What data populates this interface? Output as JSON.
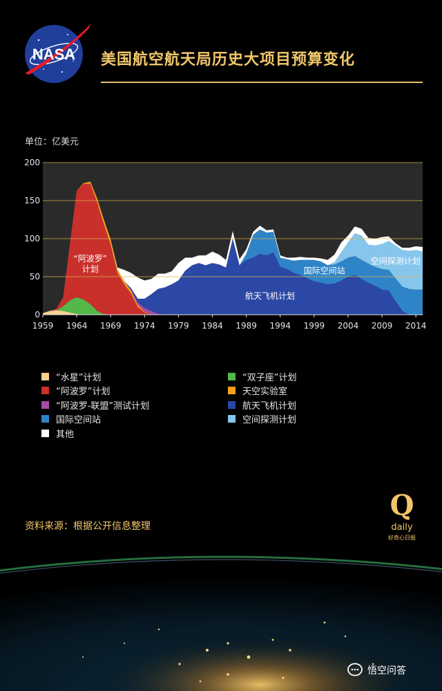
{
  "header": {
    "logo_text": "NASA",
    "title": "美国航空航天局历史大项目预算变化"
  },
  "unit_label": "单位：亿美元",
  "chart_data": {
    "type": "area",
    "stacked": true,
    "xlim": [
      1959,
      2015
    ],
    "ylim": [
      0,
      200
    ],
    "y_ticks": [
      0,
      50,
      100,
      150,
      200
    ],
    "x_ticks": [
      1959,
      1964,
      1969,
      1974,
      1979,
      1984,
      1989,
      1994,
      1999,
      2004,
      2009,
      2014
    ],
    "grid": "horizontal",
    "legend_position": "bottom",
    "annotations": [
      {
        "text": "“阿波罗”计划",
        "series": "“阿波罗”计划"
      },
      {
        "text": "航天飞机计划",
        "series": "航天飞机计划"
      },
      {
        "text": "国际空间站",
        "series": "国际空间站"
      },
      {
        "text": "空间探测计划",
        "series": "空间探测计划"
      }
    ],
    "x": [
      1959,
      1960,
      1961,
      1962,
      1963,
      1964,
      1965,
      1966,
      1967,
      1968,
      1969,
      1970,
      1971,
      1972,
      1973,
      1974,
      1975,
      1976,
      1977,
      1978,
      1979,
      1980,
      1981,
      1982,
      1983,
      1984,
      1985,
      1986,
      1987,
      1988,
      1989,
      1990,
      1991,
      1992,
      1993,
      1994,
      1995,
      1996,
      1997,
      1998,
      1999,
      2000,
      2001,
      2002,
      2003,
      2004,
      2005,
      2006,
      2007,
      2008,
      2009,
      2010,
      2011,
      2012,
      2013,
      2014,
      2015
    ],
    "series": [
      {
        "name": "“水星”计划",
        "color": "#f5d28e",
        "values": [
          2,
          5,
          6,
          5,
          3,
          1,
          0,
          0,
          0,
          0,
          0,
          0,
          0,
          0,
          0,
          0,
          0,
          0,
          0,
          0,
          0,
          0,
          0,
          0,
          0,
          0,
          0,
          0,
          0,
          0,
          0,
          0,
          0,
          0,
          0,
          0,
          0,
          0,
          0,
          0,
          0,
          0,
          0,
          0,
          0,
          0,
          0,
          0,
          0,
          0,
          0,
          0,
          0,
          0,
          0,
          0,
          0
        ]
      },
      {
        "name": "“双子座”计划",
        "color": "#54b848",
        "values": [
          0,
          0,
          0,
          6,
          16,
          22,
          20,
          14,
          5,
          1,
          0,
          0,
          0,
          0,
          0,
          0,
          0,
          0,
          0,
          0,
          0,
          0,
          0,
          0,
          0,
          0,
          0,
          0,
          0,
          0,
          0,
          0,
          0,
          0,
          0,
          0,
          0,
          0,
          0,
          0,
          0,
          0,
          0,
          0,
          0,
          0,
          0,
          0,
          0,
          0,
          0,
          0,
          0,
          0,
          0,
          0,
          0
        ]
      },
      {
        "name": "“阿波罗”计划",
        "color": "#c9302c",
        "values": [
          0,
          0,
          2,
          12,
          75,
          140,
          152,
          158,
          143,
          118,
          92,
          55,
          40,
          28,
          10,
          3,
          0,
          0,
          0,
          0,
          0,
          0,
          0,
          0,
          0,
          0,
          0,
          0,
          0,
          0,
          0,
          0,
          0,
          0,
          0,
          0,
          0,
          0,
          0,
          0,
          0,
          0,
          0,
          0,
          0,
          0,
          0,
          0,
          0,
          0,
          0,
          0,
          0,
          0,
          0,
          0,
          0
        ]
      },
      {
        "name": "天空实验室",
        "color": "#f5a01a",
        "values": [
          0,
          0,
          0,
          0,
          0,
          0,
          1,
          3,
          5,
          6,
          7,
          5,
          4,
          4,
          3,
          1,
          0,
          0,
          0,
          0,
          0,
          0,
          0,
          0,
          0,
          0,
          0,
          0,
          0,
          0,
          0,
          0,
          0,
          0,
          0,
          0,
          0,
          0,
          0,
          0,
          0,
          0,
          0,
          0,
          0,
          0,
          0,
          0,
          0,
          0,
          0,
          0,
          0,
          0,
          0,
          0,
          0
        ]
      },
      {
        "name": "“阿波罗-联盟”测试计划",
        "color": "#a64ca6",
        "values": [
          0,
          0,
          0,
          0,
          0,
          0,
          0,
          0,
          0,
          0,
          0,
          0,
          0,
          1,
          3,
          5,
          5,
          1,
          0,
          0,
          0,
          0,
          0,
          0,
          0,
          0,
          0,
          0,
          0,
          0,
          0,
          0,
          0,
          0,
          0,
          0,
          0,
          0,
          0,
          0,
          0,
          0,
          0,
          0,
          0,
          0,
          0,
          0,
          0,
          0,
          0,
          0,
          0,
          0,
          0,
          0,
          0
        ]
      },
      {
        "name": "航天飞机计划",
        "color": "#2b48a6",
        "values": [
          0,
          0,
          0,
          0,
          0,
          0,
          0,
          0,
          0,
          0,
          0,
          0,
          0,
          2,
          5,
          12,
          22,
          33,
          36,
          40,
          45,
          58,
          65,
          68,
          65,
          68,
          66,
          62,
          100,
          65,
          72,
          75,
          80,
          78,
          82,
          63,
          60,
          55,
          52,
          48,
          44,
          42,
          40,
          41,
          45,
          50,
          52,
          47,
          42,
          38,
          33,
          32,
          18,
          5,
          0,
          0,
          0
        ]
      },
      {
        "name": "国际空间站",
        "color": "#2f84c8",
        "values": [
          0,
          0,
          0,
          0,
          0,
          0,
          0,
          0,
          0,
          0,
          0,
          0,
          0,
          0,
          0,
          0,
          0,
          0,
          0,
          0,
          0,
          0,
          0,
          0,
          0,
          0,
          0,
          0,
          0,
          0,
          8,
          30,
          32,
          30,
          27,
          12,
          13,
          16,
          20,
          24,
          28,
          28,
          25,
          25,
          25,
          25,
          25,
          25,
          25,
          25,
          27,
          27,
          30,
          32,
          34,
          33,
          33
        ]
      },
      {
        "name": "空间探测计划",
        "color": "#87c6ec",
        "values": [
          0,
          0,
          0,
          0,
          0,
          0,
          0,
          0,
          0,
          0,
          0,
          0,
          0,
          0,
          0,
          0,
          0,
          0,
          0,
          0,
          0,
          0,
          0,
          0,
          0,
          0,
          0,
          0,
          0,
          0,
          0,
          0,
          0,
          0,
          0,
          0,
          0,
          0,
          0,
          0,
          0,
          0,
          0,
          3,
          12,
          20,
          30,
          32,
          25,
          28,
          33,
          38,
          43,
          48,
          50,
          52,
          50
        ]
      },
      {
        "name": "其他",
        "color": "#ffffff",
        "values": [
          0,
          0,
          0,
          0,
          0,
          0,
          0,
          0,
          0,
          0,
          0,
          2,
          15,
          20,
          28,
          24,
          20,
          20,
          18,
          17,
          23,
          17,
          10,
          10,
          13,
          15,
          13,
          10,
          10,
          8,
          6,
          4,
          5,
          3,
          3,
          3,
          2,
          4,
          4,
          3,
          3,
          4,
          7,
          10,
          13,
          9,
          9,
          9,
          9,
          9,
          9,
          6,
          3,
          3,
          4,
          5,
          6
        ]
      }
    ]
  },
  "legend": {
    "items": [
      {
        "label": "“水星”计划",
        "color": "#f5d28e"
      },
      {
        "label": "“双子座”计划",
        "color": "#54b848"
      },
      {
        "label": "“阿波罗”计划",
        "color": "#c9302c"
      },
      {
        "label": "天空实验室",
        "color": "#f5a01a"
      },
      {
        "label": "“阿波罗-联盟”测试计划",
        "color": "#a64ca6"
      },
      {
        "label": "航天飞机计划",
        "color": "#2b48a6"
      },
      {
        "label": "国际空间站",
        "color": "#2f84c8"
      },
      {
        "label": "空间探测计划",
        "color": "#87c6ec"
      },
      {
        "label": "其他",
        "color": "#ffffff"
      }
    ]
  },
  "source": "资料来源：根据公开信息整理",
  "qdaily": {
    "mark": "Q",
    "word": "daily",
    "sub": "好奇心日报"
  },
  "footer_badge": "悟空问答"
}
